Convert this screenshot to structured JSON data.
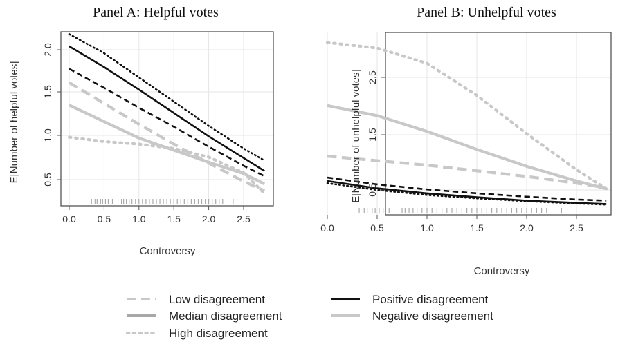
{
  "chart_data": [
    {
      "type": "line",
      "title": "Panel A: Helpful votes",
      "xlabel": "Controversy",
      "ylabel": "E[Number of helpful votes]",
      "xlim": [
        0,
        2.8
      ],
      "ylim": [
        0.3,
        2.2
      ],
      "xticks": [
        "0.0",
        "0.5",
        "1.0",
        "1.5",
        "2.0",
        "2.5"
      ],
      "yticks": [
        "0.5",
        "1.0",
        "1.5",
        "2.0"
      ],
      "grid": true,
      "x": [
        0,
        0.5,
        1.0,
        1.5,
        2.0,
        2.5,
        2.8
      ],
      "series": [
        {
          "values": [
            2.18,
            1.96,
            1.68,
            1.4,
            1.12,
            0.86,
            0.72
          ],
          "color": "#111111",
          "dash": "dotted"
        },
        {
          "values": [
            2.04,
            1.8,
            1.54,
            1.27,
            1.0,
            0.75,
            0.6
          ],
          "color": "#111111",
          "dash": "solid"
        },
        {
          "values": [
            1.78,
            1.56,
            1.33,
            1.11,
            0.88,
            0.66,
            0.54
          ],
          "color": "#111111",
          "dash": "dashed"
        },
        {
          "values": [
            1.62,
            1.38,
            1.14,
            0.91,
            0.69,
            0.48,
            0.37
          ],
          "color": "#c8c8c8",
          "dash": "dashed"
        },
        {
          "values": [
            1.36,
            1.17,
            0.98,
            0.84,
            0.7,
            0.57,
            0.45
          ],
          "color": "#c8c8c8",
          "dash": "solid"
        },
        {
          "values": [
            0.99,
            0.94,
            0.91,
            0.86,
            0.76,
            0.58,
            0.34
          ],
          "color": "#c8c8c8",
          "dash": "dotted"
        }
      ],
      "rug": [
        0.32,
        0.37,
        0.4,
        0.45,
        0.48,
        0.52,
        0.56,
        0.62,
        0.75,
        0.78,
        0.82,
        0.86,
        0.9,
        0.95,
        1.0,
        1.05,
        1.1,
        1.15,
        1.2,
        1.25,
        1.3,
        1.35,
        1.4,
        1.45,
        1.5,
        1.55,
        1.6,
        1.65,
        1.7,
        1.75,
        1.8,
        1.85,
        1.9,
        1.95,
        2.0,
        2.05,
        2.1,
        2.15,
        2.2,
        2.35
      ]
    },
    {
      "type": "line",
      "title": "Panel B: Unhelpful votes",
      "xlabel": "Controversy",
      "ylabel": "E[Number of unhelpful votes]",
      "xlim": [
        0,
        2.8
      ],
      "ylim": [
        0.2,
        3.2
      ],
      "xticks": [
        "0.0",
        "0.5",
        "1.0",
        "1.5",
        "2.0",
        "2.5"
      ],
      "yticks": [
        "0.5",
        "1.5",
        "2.5"
      ],
      "grid": true,
      "x": [
        0,
        0.5,
        1.0,
        1.5,
        2.0,
        2.5,
        2.8
      ],
      "series": [
        {
          "values": [
            3.12,
            3.02,
            2.75,
            2.18,
            1.5,
            0.86,
            0.52
          ],
          "color": "#c8c8c8",
          "dash": "dotted"
        },
        {
          "values": [
            2.0,
            1.82,
            1.54,
            1.22,
            0.92,
            0.66,
            0.52
          ],
          "color": "#c8c8c8",
          "dash": "solid"
        },
        {
          "values": [
            1.1,
            1.02,
            0.94,
            0.84,
            0.74,
            0.62,
            0.54
          ],
          "color": "#c8c8c8",
          "dash": "dashed"
        },
        {
          "values": [
            0.72,
            0.6,
            0.51,
            0.44,
            0.38,
            0.33,
            0.31
          ],
          "color": "#111111",
          "dash": "dashed"
        },
        {
          "values": [
            0.66,
            0.53,
            0.44,
            0.37,
            0.31,
            0.27,
            0.25
          ],
          "color": "#111111",
          "dash": "solid"
        },
        {
          "values": [
            0.62,
            0.5,
            0.41,
            0.35,
            0.3,
            0.26,
            0.24
          ],
          "color": "#111111",
          "dash": "dotted"
        }
      ],
      "rug": [
        0.32,
        0.37,
        0.4,
        0.45,
        0.48,
        0.52,
        0.56,
        0.62,
        0.75,
        0.78,
        0.82,
        0.86,
        0.9,
        0.95,
        1.0,
        1.05,
        1.1,
        1.15,
        1.2,
        1.25,
        1.3,
        1.35,
        1.4,
        1.45,
        1.5,
        1.55,
        1.6,
        1.65,
        1.7,
        1.75,
        1.8,
        1.85,
        1.9,
        1.95,
        2.0,
        2.05,
        2.1,
        2.15,
        2.2,
        2.35
      ]
    }
  ],
  "legend": {
    "items": [
      {
        "label": "Low disagreement",
        "color": "#c8c8c8",
        "dash": "dashed"
      },
      {
        "label": "Median disagreement",
        "color": "#a8a8a8",
        "dash": "solid"
      },
      {
        "label": "High disagreement",
        "color": "#c8c8c8",
        "dash": "dotted"
      },
      {
        "label": "Positive disagreement",
        "color": "#111111",
        "dash": "solid"
      },
      {
        "label": "Negative disagreement",
        "color": "#c8c8c8",
        "dash": "solid"
      }
    ]
  }
}
